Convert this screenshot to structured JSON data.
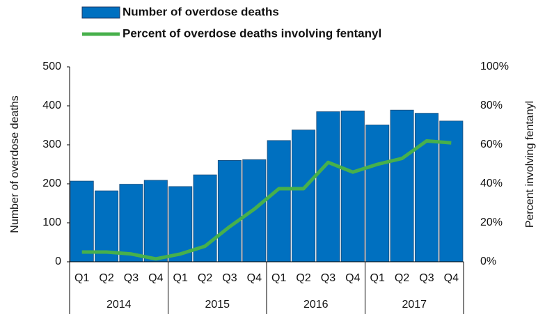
{
  "chart_data": {
    "type": "bar-line",
    "categories": [
      "Q1",
      "Q2",
      "Q3",
      "Q4",
      "Q1",
      "Q2",
      "Q3",
      "Q4",
      "Q1",
      "Q2",
      "Q3",
      "Q4",
      "Q1",
      "Q2",
      "Q3",
      "Q4"
    ],
    "groups": [
      "2014",
      "2015",
      "2016",
      "2017"
    ],
    "series": [
      {
        "name": "Number of overdose deaths",
        "type": "bar",
        "color": "#0070c0",
        "values": [
          207,
          182,
          199,
          209,
          193,
          223,
          260,
          262,
          311,
          338,
          385,
          387,
          351,
          389,
          381,
          361
        ]
      },
      {
        "name": "Percent of overdose deaths involving fentanyl",
        "type": "line",
        "color": "#47b04b",
        "axis": "y2",
        "values": [
          5,
          5,
          4,
          1.5,
          4,
          8,
          18,
          27,
          37.5,
          37.5,
          51,
          46,
          50,
          53,
          62,
          61
        ]
      }
    ],
    "y_label": "Number of  overdose deaths",
    "y2_label": "Percent involving fentanyl",
    "ylim": [
      0,
      500
    ],
    "yticks": [
      0,
      100,
      200,
      300,
      400,
      500
    ],
    "y2lim": [
      0,
      100
    ],
    "y2ticks": [
      {
        "value": 0,
        "label": "0%"
      },
      {
        "value": 20,
        "label": "20%"
      },
      {
        "value": 40,
        "label": "40%"
      },
      {
        "value": 60,
        "label": "60%"
      },
      {
        "value": 80,
        "label": "80%"
      },
      {
        "value": 100,
        "label": "100%"
      }
    ],
    "legend": "top"
  }
}
